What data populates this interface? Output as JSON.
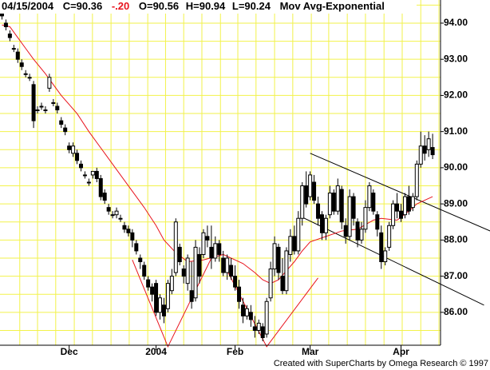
{
  "chart_data": {
    "type": "candlestick",
    "header": {
      "date": "04/15/2004",
      "close": "C=90.36",
      "change": "-.20",
      "open": "O=90.56",
      "high": "H=90.94",
      "low": "L=90.24"
    },
    "footer": "Created with SuperCharts by Omega Research © 1997",
    "up_color": "#ffffff",
    "down_color": "#000000",
    "grid_color": "#f2f24a",
    "xlim": [
      -0.5,
      111
    ],
    "ylim": [
      85.09,
      94.64
    ],
    "yticks": [
      {
        "value": 86,
        "label": "86.00"
      },
      {
        "value": 87,
        "label": "87.00"
      },
      {
        "value": 88,
        "label": "88.00"
      },
      {
        "value": 89,
        "label": "89.00"
      },
      {
        "value": 90,
        "label": "90.00"
      },
      {
        "value": 91,
        "label": "91.00"
      },
      {
        "value": 92,
        "label": "92.00"
      },
      {
        "value": 93,
        "label": "93.00"
      },
      {
        "value": 94,
        "label": "94.00"
      }
    ],
    "ygrid": [
      85.5,
      86,
      86.5,
      87,
      87.5,
      88,
      88.5,
      89,
      89.5,
      90,
      90.5,
      91,
      91.5,
      92,
      92.5,
      93,
      93.5,
      94,
      94.5
    ],
    "xgrid": [
      4.5,
      9,
      13.6,
      18.3,
      22.9,
      27.6,
      32.2,
      36.9,
      41.4,
      46,
      50.6,
      55.3,
      59.7,
      64.3,
      69,
      73.6,
      78.3,
      82.7,
      87.4,
      92,
      96.7,
      101.3,
      106,
      110.6
    ],
    "xticks": [
      {
        "value": 17,
        "label": "Dec"
      },
      {
        "value": 39,
        "label": "2004"
      },
      {
        "value": 59,
        "label": "Feb"
      },
      {
        "value": 78,
        "label": "Mar"
      },
      {
        "value": 101,
        "label": "Apr"
      }
    ],
    "ohlc": [
      [
        94.3,
        94.4,
        94.1,
        94.2
      ],
      [
        94.0,
        94.1,
        93.8,
        93.9
      ],
      [
        93.7,
        93.8,
        93.5,
        93.6
      ],
      [
        93.3,
        93.4,
        93.2,
        93.3
      ],
      [
        93.2,
        93.3,
        92.9,
        93.0
      ],
      [
        92.9,
        93.0,
        92.7,
        92.8
      ],
      [
        92.6,
        92.7,
        92.5,
        92.6
      ],
      [
        92.5,
        92.6,
        92.4,
        92.5
      ],
      [
        92.3,
        92.4,
        91.1,
        91.3
      ],
      [
        91.6,
        91.7,
        91.5,
        91.6
      ],
      [
        91.7,
        91.8,
        91.6,
        91.7
      ],
      [
        91.6,
        91.7,
        91.5,
        91.6
      ],
      [
        92.2,
        92.6,
        92.1,
        92.5
      ],
      [
        91.8,
        91.9,
        91.7,
        91.8
      ],
      [
        91.7,
        91.8,
        91.5,
        91.6
      ],
      [
        91.3,
        91.4,
        91.1,
        91.2
      ],
      [
        91.1,
        91.2,
        90.9,
        91.0
      ],
      [
        90.6,
        90.7,
        90.4,
        90.5
      ],
      [
        90.4,
        90.7,
        90.3,
        90.6
      ],
      [
        90.4,
        90.5,
        90.1,
        90.2
      ],
      [
        90.1,
        90.2,
        89.9,
        90.0
      ],
      [
        89.8,
        89.9,
        89.7,
        89.8
      ],
      [
        89.6,
        89.7,
        89.5,
        89.6
      ],
      [
        89.8,
        89.9,
        89.7,
        89.9
      ],
      [
        89.9,
        90.0,
        89.6,
        89.7
      ],
      [
        89.7,
        89.8,
        89.1,
        89.2
      ],
      [
        89.3,
        89.4,
        89.0,
        89.1
      ],
      [
        88.9,
        89.0,
        88.7,
        88.8
      ],
      [
        88.7,
        88.8,
        88.6,
        88.7
      ],
      [
        88.7,
        88.9,
        88.6,
        88.8
      ],
      [
        88.6,
        88.7,
        88.5,
        88.6
      ],
      [
        88.4,
        88.5,
        88.2,
        88.3
      ],
      [
        88.3,
        88.4,
        88.1,
        88.2
      ],
      [
        88.2,
        88.3,
        87.8,
        88.0
      ],
      [
        87.9,
        88.0,
        87.6,
        87.7
      ],
      [
        87.5,
        87.6,
        87.2,
        87.4
      ],
      [
        87.3,
        87.4,
        86.9,
        87.0
      ],
      [
        86.9,
        87.0,
        86.6,
        86.7
      ],
      [
        86.7,
        86.8,
        86.3,
        86.5
      ],
      [
        86.8,
        86.9,
        85.9,
        86.0
      ],
      [
        86.0,
        86.5,
        85.8,
        86.4
      ],
      [
        86.2,
        86.4,
        85.7,
        85.9
      ],
      [
        86.1,
        86.9,
        86.0,
        86.8
      ],
      [
        86.6,
        87.2,
        86.5,
        87.0
      ],
      [
        87.1,
        88.6,
        87.0,
        88.5
      ],
      [
        87.8,
        87.9,
        87.3,
        87.4
      ],
      [
        87.2,
        87.3,
        86.8,
        87.0
      ],
      [
        86.8,
        87.6,
        86.6,
        87.5
      ],
      [
        86.6,
        87.4,
        86.1,
        86.3
      ],
      [
        86.4,
        88.0,
        86.3,
        87.8
      ],
      [
        87.6,
        87.8,
        86.8,
        87.0
      ],
      [
        87.6,
        88.3,
        87.5,
        88.2
      ],
      [
        88.1,
        88.4,
        87.8,
        88.0
      ],
      [
        87.8,
        88.4,
        87.2,
        87.5
      ],
      [
        87.5,
        88.1,
        87.4,
        87.9
      ],
      [
        87.9,
        88.0,
        87.4,
        87.6
      ],
      [
        87.5,
        87.7,
        87.0,
        87.1
      ],
      [
        87.1,
        87.6,
        86.9,
        87.5
      ],
      [
        87.3,
        87.5,
        86.9,
        87.0
      ],
      [
        87.0,
        87.3,
        86.6,
        86.7
      ],
      [
        86.7,
        86.9,
        86.1,
        86.3
      ],
      [
        86.2,
        86.4,
        85.7,
        85.9
      ],
      [
        85.9,
        86.2,
        85.8,
        86.1
      ],
      [
        86.0,
        86.2,
        85.6,
        85.8
      ],
      [
        85.6,
        85.9,
        85.3,
        85.5
      ],
      [
        85.5,
        85.8,
        85.4,
        85.7
      ],
      [
        85.6,
        85.7,
        85.2,
        85.3
      ],
      [
        85.4,
        86.4,
        85.3,
        86.3
      ],
      [
        86.4,
        87.4,
        86.3,
        87.2
      ],
      [
        87.2,
        88.1,
        87.0,
        87.9
      ],
      [
        87.8,
        87.9,
        86.9,
        87.1
      ],
      [
        87.0,
        87.5,
        86.5,
        86.6
      ],
      [
        86.6,
        87.8,
        86.5,
        87.7
      ],
      [
        87.6,
        88.3,
        87.4,
        88.1
      ],
      [
        88.1,
        88.4,
        87.6,
        87.7
      ],
      [
        87.7,
        88.8,
        87.6,
        88.6
      ],
      [
        88.6,
        89.6,
        88.4,
        89.5
      ],
      [
        89.5,
        89.9,
        88.9,
        89.0
      ],
      [
        89.2,
        89.9,
        89.1,
        89.8
      ],
      [
        89.6,
        89.8,
        89.0,
        89.1
      ],
      [
        89.0,
        89.2,
        88.4,
        88.6
      ],
      [
        88.7,
        88.8,
        88.0,
        88.2
      ],
      [
        88.2,
        88.7,
        88.0,
        88.6
      ],
      [
        88.7,
        89.5,
        88.6,
        89.3
      ],
      [
        89.3,
        89.4,
        88.7,
        88.8
      ],
      [
        88.8,
        89.7,
        88.7,
        89.5
      ],
      [
        89.4,
        89.5,
        88.3,
        88.5
      ],
      [
        88.4,
        88.6,
        87.9,
        88.1
      ],
      [
        88.1,
        89.4,
        88.0,
        89.2
      ],
      [
        89.2,
        89.3,
        88.4,
        88.6
      ],
      [
        88.5,
        88.6,
        87.8,
        88.0
      ],
      [
        88.0,
        88.5,
        87.9,
        88.3
      ],
      [
        88.3,
        89.1,
        88.2,
        88.9
      ],
      [
        88.9,
        89.6,
        88.8,
        89.5
      ],
      [
        89.3,
        89.4,
        88.7,
        88.8
      ],
      [
        88.7,
        88.8,
        88.1,
        88.3
      ],
      [
        88.2,
        88.4,
        87.2,
        87.4
      ],
      [
        87.4,
        87.8,
        87.3,
        87.7
      ],
      [
        87.8,
        88.5,
        87.7,
        88.4
      ],
      [
        88.4,
        89.1,
        88.3,
        89.0
      ],
      [
        89.0,
        89.3,
        88.6,
        88.8
      ],
      [
        88.8,
        89.0,
        88.5,
        88.6
      ],
      [
        88.7,
        89.3,
        88.6,
        89.2
      ],
      [
        89.2,
        89.5,
        88.7,
        88.8
      ],
      [
        88.9,
        89.3,
        88.8,
        89.2
      ],
      [
        89.2,
        90.2,
        89.1,
        90.1
      ],
      [
        90.1,
        91.0,
        90.0,
        90.6
      ],
      [
        90.6,
        90.9,
        90.2,
        90.4
      ],
      [
        90.5,
        91.0,
        90.3,
        90.8
      ],
      [
        90.56,
        90.94,
        90.24,
        90.36
      ]
    ],
    "ema": {
      "name": "Mov Avg-Exponential",
      "color": "#e8141e",
      "x": [
        0,
        2,
        4,
        6,
        8,
        11,
        15,
        19,
        22,
        26,
        29,
        33,
        36,
        39,
        41,
        44,
        47,
        51,
        56,
        61,
        64,
        66,
        68,
        70,
        72,
        74,
        76,
        78,
        82,
        86,
        90,
        94,
        96,
        100,
        103,
        105,
        107,
        109
      ],
      "values": [
        93.95,
        93.9,
        93.6,
        93.3,
        93.0,
        92.6,
        92.0,
        91.5,
        91.0,
        90.4,
        89.95,
        89.35,
        88.9,
        88.4,
        88.0,
        87.65,
        87.4,
        87.45,
        87.6,
        87.35,
        87.1,
        86.9,
        86.8,
        86.9,
        87.15,
        87.4,
        87.7,
        87.95,
        88.1,
        88.25,
        88.3,
        88.55,
        88.6,
        88.55,
        88.8,
        89.0,
        89.1,
        89.2
      ]
    },
    "trendlines": [
      {
        "color": "#000000",
        "x": [
          78,
          124
        ],
        "values": [
          90.4,
          88.23
        ]
      },
      {
        "color": "#000000",
        "x": [
          76,
          122
        ],
        "values": [
          88.63,
          86.2
        ]
      },
      {
        "color": "#e8141e",
        "x": [
          33,
          42,
          53
        ],
        "values": [
          87.45,
          85.05,
          87.5
        ]
      },
      {
        "color": "#e8141e",
        "x": [
          57,
          67,
          80
        ],
        "values": [
          87.15,
          85.05,
          86.95
        ]
      }
    ]
  }
}
